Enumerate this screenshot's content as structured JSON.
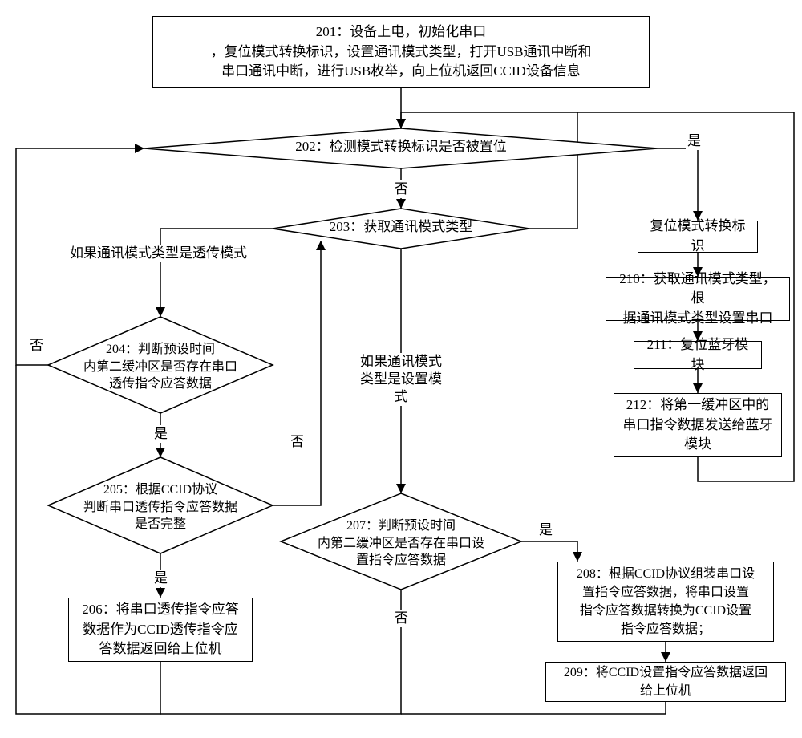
{
  "flowchart": {
    "type": "flowchart",
    "font_family": "SimSun",
    "node_fontsize": 17,
    "edge_label_fontsize": 17,
    "stroke_color": "#000000",
    "background_color": "#ffffff",
    "arrowhead_size": 8,
    "nodes": {
      "n201": {
        "shape": "rect",
        "text": "201：设备上电，初始化串口\n，复位模式转换标识，设置通讯模式类型，打开USB通讯中断和\n串口通讯中断，进行USB枚举，向上位机返回CCID设备信息"
      },
      "n202": {
        "shape": "diamond",
        "text": "202：检测模式转换标识是否被置位"
      },
      "n203": {
        "shape": "diamond",
        "text": "203：获取通讯模式类型"
      },
      "reset_flag": {
        "shape": "rect",
        "text": "复位模式转换标识"
      },
      "n210": {
        "shape": "rect",
        "text": "210：获取通讯模式类型，根\n据通讯模式类型设置串口"
      },
      "n211": {
        "shape": "rect",
        "text": "211：复位蓝牙模块"
      },
      "n212": {
        "shape": "rect",
        "text": "212：将第一缓冲区中的\n串口指令数据发送给蓝牙\n模块"
      },
      "n204": {
        "shape": "diamond",
        "text": "204：判断预设时间\n内第二缓冲区是否存在串口\n透传指令应答数据"
      },
      "n205": {
        "shape": "diamond",
        "text": "205：根据CCID协议\n判断串口透传指令应答数据\n是否完整"
      },
      "n206": {
        "shape": "rect",
        "text": "206：将串口透传指令应答\n数据作为CCID透传指令应\n答数据返回给上位机"
      },
      "n207": {
        "shape": "diamond",
        "text": "207：判断预设时间\n内第二缓冲区是否存在串口设\n置指令应答数据"
      },
      "n208": {
        "shape": "rect",
        "text": "208：根据CCID协议组装串口设\n置指令应答数据，将串口设置\n指令应答数据转换为CCID设置\n指令应答数据；"
      },
      "n209": {
        "shape": "rect",
        "text": "209：将CCID设置指令应答数据返回\n给上位机"
      }
    },
    "edge_labels": {
      "l_202_yes": "是",
      "l_202_no": "否",
      "l_203_pass": "如果通讯模式类型是透传模式",
      "l_203_set": "如果通讯模式\n类型是设置模式",
      "l_204_yes": "是",
      "l_204_no": "否",
      "l_205_yes": "是",
      "l_205_no": "否",
      "l_207_yes": "是",
      "l_207_no": "否"
    }
  }
}
